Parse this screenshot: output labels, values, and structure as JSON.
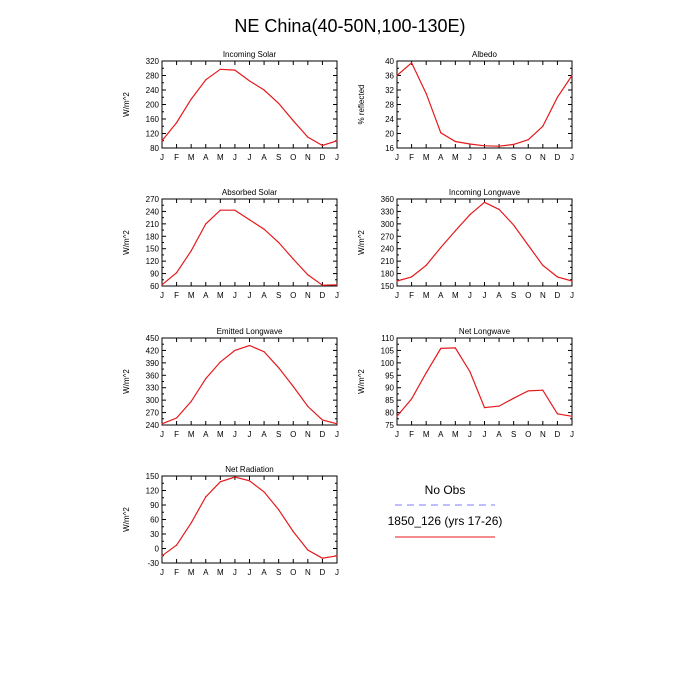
{
  "page": {
    "title": "NE China(40-50N,100-130E)"
  },
  "legend": {
    "entries": [
      {
        "label": "No Obs",
        "color": "#7b7bff",
        "dash": true
      },
      {
        "label": "1850_126 (yrs 17-26)",
        "color": "#e41a1c",
        "dash": false
      }
    ]
  },
  "chart_data": [
    {
      "type": "line",
      "title": "Incoming Solar",
      "ylabel": "W/m^2",
      "ylim": [
        80,
        320
      ],
      "yticks": [
        80,
        120,
        160,
        200,
        240,
        280,
        320
      ],
      "categories": [
        "J",
        "F",
        "M",
        "A",
        "M",
        "J",
        "J",
        "A",
        "S",
        "O",
        "N",
        "D",
        "J"
      ],
      "series": [
        {
          "color": "#e41a1c",
          "values": [
            100,
            150,
            215,
            268,
            297,
            295,
            265,
            240,
            203,
            155,
            110,
            87,
            100
          ]
        }
      ]
    },
    {
      "type": "line",
      "title": "Albedo",
      "ylabel": "% reflected",
      "ylim": [
        16,
        40
      ],
      "yticks": [
        16,
        20,
        24,
        28,
        32,
        36,
        40
      ],
      "categories": [
        "J",
        "F",
        "M",
        "A",
        "M",
        "J",
        "J",
        "A",
        "S",
        "O",
        "N",
        "D",
        "J"
      ],
      "series": [
        {
          "color": "#e41a1c",
          "values": [
            36,
            39.5,
            31,
            20.2,
            17.8,
            17.1,
            16.6,
            16.5,
            17,
            18.3,
            22,
            30,
            36
          ]
        }
      ]
    },
    {
      "type": "line",
      "title": "Absorbed Solar",
      "ylabel": "W/m^2",
      "ylim": [
        60,
        270
      ],
      "yticks": [
        60,
        90,
        120,
        150,
        180,
        210,
        240,
        270
      ],
      "categories": [
        "J",
        "F",
        "M",
        "A",
        "M",
        "J",
        "J",
        "A",
        "S",
        "O",
        "N",
        "D",
        "J"
      ],
      "series": [
        {
          "color": "#e41a1c",
          "values": [
            63,
            92,
            145,
            210,
            243,
            243,
            220,
            197,
            165,
            125,
            87,
            62,
            63
          ]
        }
      ]
    },
    {
      "type": "line",
      "title": "Incoming Longwave",
      "ylabel": "W/m^2",
      "ylim": [
        150,
        360
      ],
      "yticks": [
        150,
        180,
        210,
        240,
        270,
        300,
        330,
        360
      ],
      "categories": [
        "J",
        "F",
        "M",
        "A",
        "M",
        "J",
        "J",
        "A",
        "S",
        "O",
        "N",
        "D",
        "J"
      ],
      "series": [
        {
          "color": "#e41a1c",
          "values": [
            162,
            172,
            200,
            243,
            283,
            322,
            352,
            335,
            297,
            248,
            200,
            172,
            162
          ]
        }
      ]
    },
    {
      "type": "line",
      "title": "Emitted Longwave",
      "ylabel": "W/m^2",
      "ylim": [
        240,
        450
      ],
      "yticks": [
        240,
        270,
        300,
        330,
        360,
        390,
        420,
        450
      ],
      "categories": [
        "J",
        "F",
        "M",
        "A",
        "M",
        "J",
        "J",
        "A",
        "S",
        "O",
        "N",
        "D",
        "J"
      ],
      "series": [
        {
          "color": "#e41a1c",
          "values": [
            243,
            257,
            297,
            352,
            392,
            420,
            432,
            417,
            378,
            333,
            285,
            252,
            243
          ]
        }
      ]
    },
    {
      "type": "line",
      "title": "Net Longwave",
      "ylabel": "W/m^2",
      "ylim": [
        75,
        110
      ],
      "yticks": [
        75,
        80,
        85,
        90,
        95,
        100,
        105,
        110
      ],
      "categories": [
        "J",
        "F",
        "M",
        "A",
        "M",
        "J",
        "J",
        "A",
        "S",
        "O",
        "N",
        "D",
        "J"
      ],
      "series": [
        {
          "color": "#e41a1c",
          "values": [
            78.5,
            85.5,
            96,
            105.8,
            106,
            96.5,
            82,
            82.6,
            85.8,
            88.7,
            89,
            79.5,
            78.5
          ]
        }
      ]
    },
    {
      "type": "line",
      "title": "Net Radiation",
      "ylabel": "W/m^2",
      "ylim": [
        -30,
        150
      ],
      "yticks": [
        -30,
        0,
        30,
        60,
        90,
        120,
        150
      ],
      "categories": [
        "J",
        "F",
        "M",
        "A",
        "M",
        "J",
        "J",
        "A",
        "S",
        "O",
        "N",
        "D",
        "J"
      ],
      "series": [
        {
          "color": "#e41a1c",
          "values": [
            -15,
            7,
            53,
            107,
            138,
            148,
            140,
            117,
            80,
            35,
            -3,
            -20,
            -15
          ]
        }
      ]
    }
  ]
}
